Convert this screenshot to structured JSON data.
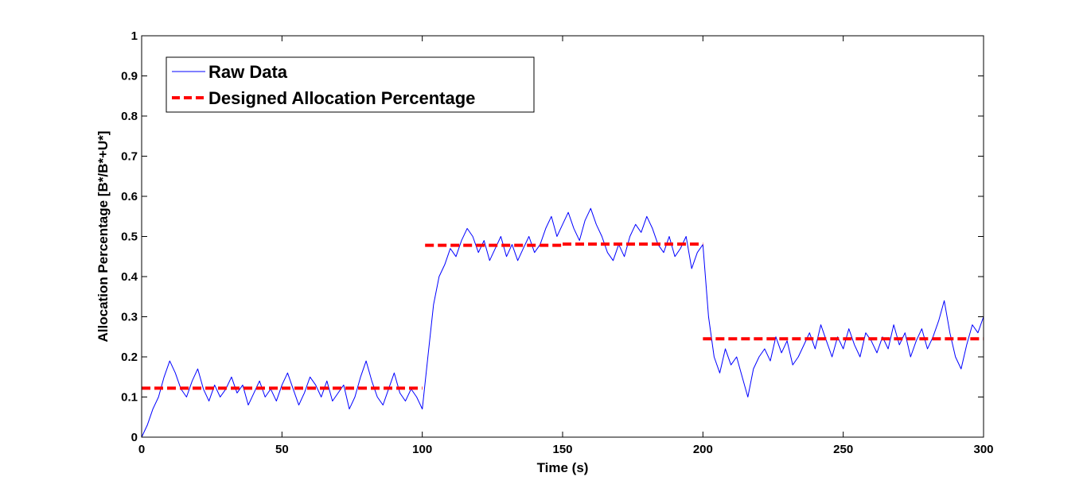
{
  "chart_data": {
    "type": "line",
    "title": "",
    "xlabel": "Time (s)",
    "ylabel": "Allocation Percentage [B*/B*+U*]",
    "xlim": [
      0,
      300
    ],
    "ylim": [
      0,
      1
    ],
    "xticks": [
      0,
      50,
      100,
      150,
      200,
      250,
      300
    ],
    "xtick_labels": [
      "0",
      "50",
      "100",
      "150",
      "200",
      "250",
      "300"
    ],
    "yticks": [
      0,
      0.1,
      0.2,
      0.3,
      0.4,
      0.5,
      0.6,
      0.7,
      0.8,
      0.9,
      1
    ],
    "ytick_labels": [
      "0",
      "0.1",
      "0.2",
      "0.3",
      "0.4",
      "0.5",
      "0.6",
      "0.7",
      "0.8",
      "0.9",
      "1"
    ],
    "grid": false,
    "legend": {
      "position": "top-left"
    },
    "series": [
      {
        "name": "Raw Data",
        "color": "#0000ff",
        "style": "solid",
        "x": [
          0,
          2,
          4,
          6,
          8,
          10,
          12,
          14,
          16,
          18,
          20,
          22,
          24,
          26,
          28,
          30,
          32,
          34,
          36,
          38,
          40,
          42,
          44,
          46,
          48,
          50,
          52,
          54,
          56,
          58,
          60,
          62,
          64,
          66,
          68,
          70,
          72,
          74,
          76,
          78,
          80,
          82,
          84,
          86,
          88,
          90,
          92,
          94,
          96,
          98,
          100,
          102,
          104,
          106,
          108,
          110,
          112,
          114,
          116,
          118,
          120,
          122,
          124,
          126,
          128,
          130,
          132,
          134,
          136,
          138,
          140,
          142,
          144,
          146,
          148,
          150,
          152,
          154,
          156,
          158,
          160,
          162,
          164,
          166,
          168,
          170,
          172,
          174,
          176,
          178,
          180,
          182,
          184,
          186,
          188,
          190,
          192,
          194,
          196,
          198,
          200,
          202,
          204,
          206,
          208,
          210,
          212,
          214,
          216,
          218,
          220,
          222,
          224,
          226,
          228,
          230,
          232,
          234,
          236,
          238,
          240,
          242,
          244,
          246,
          248,
          250,
          252,
          254,
          256,
          258,
          260,
          262,
          264,
          266,
          268,
          270,
          272,
          274,
          276,
          278,
          280,
          282,
          284,
          286,
          288,
          290,
          292,
          294,
          296,
          298,
          300
        ],
        "y": [
          0.0,
          0.03,
          0.07,
          0.1,
          0.15,
          0.19,
          0.16,
          0.12,
          0.1,
          0.14,
          0.17,
          0.12,
          0.09,
          0.13,
          0.1,
          0.12,
          0.15,
          0.11,
          0.13,
          0.08,
          0.11,
          0.14,
          0.1,
          0.12,
          0.09,
          0.13,
          0.16,
          0.12,
          0.08,
          0.11,
          0.15,
          0.13,
          0.1,
          0.14,
          0.09,
          0.11,
          0.13,
          0.07,
          0.1,
          0.15,
          0.19,
          0.14,
          0.1,
          0.08,
          0.12,
          0.16,
          0.11,
          0.09,
          0.12,
          0.1,
          0.07,
          0.2,
          0.33,
          0.4,
          0.43,
          0.47,
          0.45,
          0.49,
          0.52,
          0.5,
          0.46,
          0.49,
          0.44,
          0.47,
          0.5,
          0.45,
          0.48,
          0.44,
          0.47,
          0.5,
          0.46,
          0.48,
          0.52,
          0.55,
          0.5,
          0.53,
          0.56,
          0.52,
          0.49,
          0.54,
          0.57,
          0.53,
          0.5,
          0.46,
          0.44,
          0.48,
          0.45,
          0.5,
          0.53,
          0.51,
          0.55,
          0.52,
          0.48,
          0.46,
          0.5,
          0.45,
          0.47,
          0.5,
          0.42,
          0.46,
          0.48,
          0.3,
          0.2,
          0.16,
          0.22,
          0.18,
          0.2,
          0.15,
          0.1,
          0.17,
          0.2,
          0.22,
          0.19,
          0.25,
          0.21,
          0.24,
          0.18,
          0.2,
          0.23,
          0.26,
          0.22,
          0.28,
          0.24,
          0.2,
          0.25,
          0.22,
          0.27,
          0.23,
          0.2,
          0.26,
          0.24,
          0.21,
          0.25,
          0.22,
          0.28,
          0.23,
          0.26,
          0.2,
          0.24,
          0.27,
          0.22,
          0.25,
          0.29,
          0.34,
          0.26,
          0.2,
          0.17,
          0.23,
          0.28,
          0.26,
          0.3
        ]
      },
      {
        "name": "Designed Allocation Percentage",
        "color": "#ff0000",
        "style": "dashed",
        "segments": [
          {
            "x": [
              0,
              100
            ],
            "y": [
              0.122,
              0.122
            ]
          },
          {
            "x": [
              101,
              150
            ],
            "y": [
              0.478,
              0.478
            ]
          },
          {
            "x": [
              150,
              200
            ],
            "y": [
              0.481,
              0.481
            ]
          },
          {
            "x": [
              200,
              300
            ],
            "y": [
              0.245,
              0.245
            ]
          }
        ]
      }
    ]
  }
}
